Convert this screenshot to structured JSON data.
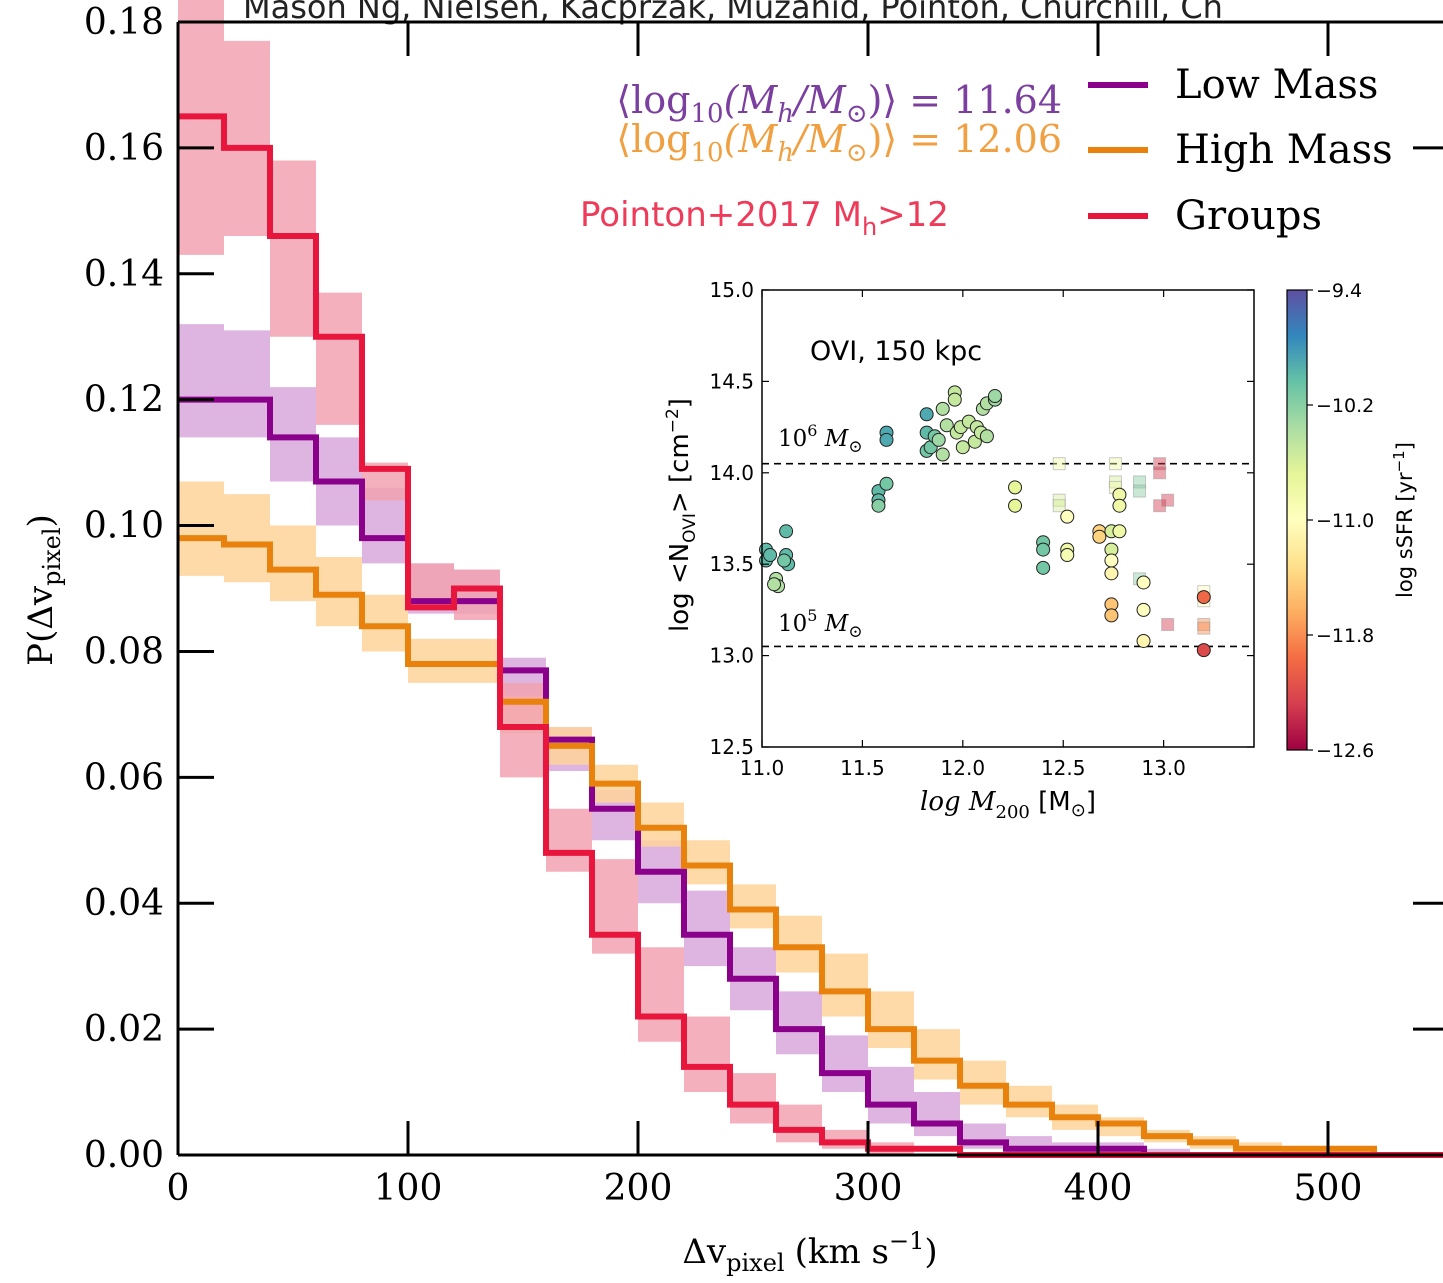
{
  "header_text": "Mason Ng, Nielsen, Kacprzak, Muzahid, Pointon, Churchill, Ch",
  "chart_data": [
    {
      "type": "line",
      "title": "",
      "xlabel": "Δv",
      "xlabel_sub": "pixel",
      "xlabel_unit": "(km s",
      "xlabel_unit_exp": "−1",
      "xlabel_unit_end": ")",
      "ylabel": "P(Δv",
      "ylabel_sub": "pixel",
      "ylabel_end": ")",
      "xlim": [
        0,
        550
      ],
      "ylim": [
        0,
        0.18
      ],
      "xticks": [
        "0",
        "100",
        "200",
        "300",
        "400",
        "500"
      ],
      "yticks": [
        "0.00",
        "0.02",
        "0.04",
        "0.06",
        "0.08",
        "0.10",
        "0.12",
        "0.14",
        "0.16",
        "0.18"
      ],
      "bin_edges": [
        0,
        20,
        40,
        60,
        80,
        100,
        120,
        140,
        160,
        180,
        200,
        220,
        240,
        260,
        280,
        300,
        320,
        340,
        360,
        380,
        400,
        420,
        440,
        460,
        480,
        500,
        520,
        540,
        560
      ],
      "series": [
        {
          "name": "Low Mass",
          "color": "#8b008b",
          "band_color": "#d8a8dc",
          "values": [
            0.12,
            0.12,
            0.114,
            0.107,
            0.098,
            0.088,
            0.088,
            0.077,
            0.066,
            0.055,
            0.045,
            0.035,
            0.028,
            0.02,
            0.013,
            0.008,
            0.005,
            0.002,
            0.001,
            0.001,
            0.001,
            0,
            0,
            0,
            0,
            0,
            0,
            0
          ],
          "lower": [
            0.114,
            0.114,
            0.107,
            0.1,
            0.094,
            0.086,
            0.086,
            0.073,
            0.061,
            0.05,
            0.04,
            0.03,
            0.023,
            0.016,
            0.01,
            0.005,
            0.003,
            0.001,
            0,
            0,
            0,
            0,
            0,
            0,
            0,
            0,
            0,
            0
          ],
          "upper": [
            0.132,
            0.131,
            0.122,
            0.114,
            0.106,
            0.094,
            0.093,
            0.079,
            0.068,
            0.058,
            0.05,
            0.042,
            0.033,
            0.026,
            0.019,
            0.014,
            0.01,
            0.005,
            0.003,
            0.002,
            0.002,
            0.001,
            0,
            0,
            0,
            0,
            0,
            0
          ]
        },
        {
          "name": "High Mass",
          "color": "#e8820c",
          "band_color": "#ffd39a",
          "values": [
            0.098,
            0.097,
            0.093,
            0.089,
            0.084,
            0.078,
            0.078,
            0.072,
            0.065,
            0.059,
            0.052,
            0.046,
            0.039,
            0.033,
            0.026,
            0.02,
            0.015,
            0.011,
            0.008,
            0.006,
            0.005,
            0.003,
            0.002,
            0.001,
            0.001,
            0.001,
            0,
            0
          ],
          "lower": [
            0.092,
            0.091,
            0.088,
            0.084,
            0.08,
            0.075,
            0.075,
            0.067,
            0.062,
            0.056,
            0.049,
            0.043,
            0.036,
            0.029,
            0.022,
            0.017,
            0.012,
            0.008,
            0.006,
            0.004,
            0.003,
            0.002,
            0.001,
            0.001,
            0,
            0,
            0,
            0
          ],
          "upper": [
            0.107,
            0.105,
            0.1,
            0.095,
            0.089,
            0.082,
            0.082,
            0.073,
            0.068,
            0.062,
            0.056,
            0.05,
            0.043,
            0.038,
            0.032,
            0.026,
            0.02,
            0.015,
            0.011,
            0.008,
            0.006,
            0.004,
            0.003,
            0.002,
            0.001,
            0.001,
            0,
            0
          ]
        },
        {
          "name": "Groups",
          "color": "#e8163c",
          "band_color": "#f2a2b0",
          "values": [
            0.165,
            0.16,
            0.146,
            0.13,
            0.109,
            0.087,
            0.09,
            0.068,
            0.048,
            0.035,
            0.022,
            0.014,
            0.008,
            0.004,
            0.002,
            0.001,
            0.001,
            0,
            0,
            0,
            0,
            0,
            0,
            0,
            0,
            0,
            0,
            0
          ],
          "lower": [
            0.143,
            0.146,
            0.13,
            0.116,
            0.104,
            0.087,
            0.085,
            0.06,
            0.045,
            0.032,
            0.018,
            0.01,
            0.005,
            0.002,
            0.001,
            0,
            0,
            0,
            0,
            0,
            0,
            0,
            0,
            0,
            0,
            0,
            0,
            0
          ],
          "upper": [
            0.184,
            0.177,
            0.158,
            0.137,
            0.11,
            0.094,
            0.093,
            0.075,
            0.055,
            0.047,
            0.033,
            0.022,
            0.013,
            0.008,
            0.004,
            0.002,
            0,
            0,
            0,
            0,
            0,
            0,
            0,
            0,
            0,
            0,
            0,
            0
          ]
        }
      ],
      "legend": {
        "placement": "top-right",
        "entries": [
          "Low Mass",
          "High Mass",
          "Groups"
        ]
      },
      "annotations": {
        "low_mass": {
          "prefix": "⟨log",
          "sub": "10",
          "mid": "(M",
          "msub": "h",
          "sep": "/M",
          "sun": "⊙",
          "suffix": ")⟩ = 11.64",
          "color": "#7b3fa0"
        },
        "high_mass": {
          "prefix": "⟨log",
          "sub": "10",
          "mid": "(M",
          "msub": "h",
          "sep": "/M",
          "sun": "⊙",
          "suffix": ")⟩ = 12.06",
          "color": "#f0a040"
        },
        "pointon": {
          "text": "Pointon+2017 M",
          "sub": "h",
          "suffix": ">12",
          "color": "#ee3b5a"
        }
      }
    },
    {
      "type": "scatter",
      "title": "",
      "inset_label": "OVI, 150 kpc",
      "xlabel": "log M",
      "xlabel_sub": "200",
      "xlabel_unit": " [M",
      "xlabel_unit_sun": "⊙",
      "xlabel_unit_end": "]",
      "ylabel": "log <N",
      "ylabel_sub": "OVI",
      "ylabel_mid": "> [cm",
      "ylabel_exp": "−2",
      "ylabel_end": "]",
      "xlim": [
        11.0,
        13.45
      ],
      "ylim": [
        12.5,
        15.0
      ],
      "xticks": [
        "11.0",
        "11.5",
        "12.0",
        "12.5",
        "13.0"
      ],
      "yticks": [
        "12.5",
        "13.0",
        "13.5",
        "14.0",
        "14.5",
        "15.0"
      ],
      "reference_lines": [
        {
          "y": 14.05,
          "label": "10",
          "exp": "6",
          "unit": " M",
          "sun": "⊙"
        },
        {
          "y": 13.05,
          "label": "10",
          "exp": "5",
          "unit": " M",
          "sun": "⊙"
        }
      ],
      "colorbar": {
        "label": "log sSFR [yr",
        "label_exp": "−1",
        "label_end": "]",
        "range": [
          -12.6,
          -9.4
        ],
        "ticks": [
          "−9.4",
          "−10.2",
          "−11.0",
          "−11.8",
          "−12.6"
        ],
        "colors": [
          "#5e4fa2",
          "#3288bd",
          "#66c2a5",
          "#abdda4",
          "#e6f598",
          "#ffffbf",
          "#fee08b",
          "#fdae61",
          "#f46d43",
          "#d53e4f",
          "#9e0142"
        ]
      },
      "circles": [
        [
          11.02,
          13.58,
          -10.0
        ],
        [
          11.02,
          13.52,
          -10.0
        ],
        [
          11.04,
          13.55,
          -10.0
        ],
        [
          11.07,
          13.42,
          -10.4
        ],
        [
          11.08,
          13.38,
          -10.4
        ],
        [
          11.06,
          13.39,
          -10.4
        ],
        [
          11.12,
          13.68,
          -10.0
        ],
        [
          11.12,
          13.55,
          -10.0
        ],
        [
          11.13,
          13.5,
          -10.0
        ],
        [
          11.11,
          13.52,
          -10.1
        ],
        [
          11.58,
          13.9,
          -10.0
        ],
        [
          11.58,
          13.85,
          -10.0
        ],
        [
          11.58,
          13.82,
          -10.2
        ],
        [
          11.62,
          13.94,
          -10.1
        ],
        [
          11.62,
          14.22,
          -9.9
        ],
        [
          11.62,
          14.18,
          -9.9
        ],
        [
          11.82,
          14.32,
          -9.9
        ],
        [
          11.82,
          14.22,
          -10.0
        ],
        [
          11.82,
          14.12,
          -10.1
        ],
        [
          11.84,
          14.14,
          -10.1
        ],
        [
          11.86,
          14.2,
          -10.1
        ],
        [
          11.88,
          14.18,
          -10.3
        ],
        [
          11.9,
          14.35,
          -10.4
        ],
        [
          11.9,
          14.1,
          -10.4
        ],
        [
          11.92,
          14.26,
          -10.4
        ],
        [
          11.96,
          14.44,
          -10.5
        ],
        [
          11.96,
          14.4,
          -10.5
        ],
        [
          11.97,
          14.22,
          -10.5
        ],
        [
          11.99,
          14.25,
          -10.5
        ],
        [
          12.0,
          14.14,
          -10.5
        ],
        [
          12.03,
          14.28,
          -10.5
        ],
        [
          12.06,
          14.17,
          -10.5
        ],
        [
          12.07,
          14.25,
          -10.5
        ],
        [
          12.09,
          14.22,
          -10.5
        ],
        [
          12.1,
          14.35,
          -10.4
        ],
        [
          12.12,
          14.2,
          -10.4
        ],
        [
          12.12,
          14.38,
          -10.4
        ],
        [
          12.16,
          14.4,
          -10.3
        ],
        [
          12.16,
          14.42,
          -10.3
        ],
        [
          12.26,
          13.92,
          -10.7
        ],
        [
          12.26,
          13.82,
          -10.7
        ],
        [
          12.4,
          13.62,
          -10.1
        ],
        [
          12.4,
          13.58,
          -10.1
        ],
        [
          12.4,
          13.48,
          -10.1
        ],
        [
          12.52,
          13.76,
          -11.0
        ],
        [
          12.52,
          13.58,
          -10.8
        ],
        [
          12.52,
          13.55,
          -10.9
        ],
        [
          12.68,
          13.68,
          -11.4
        ],
        [
          12.68,
          13.65,
          -11.4
        ],
        [
          12.74,
          13.68,
          -10.6
        ],
        [
          12.74,
          13.58,
          -10.6
        ],
        [
          12.74,
          13.52,
          -11.0
        ],
        [
          12.74,
          13.45,
          -11.1
        ],
        [
          12.74,
          13.28,
          -11.5
        ],
        [
          12.74,
          13.22,
          -11.5
        ],
        [
          12.78,
          13.88,
          -10.8
        ],
        [
          12.78,
          13.82,
          -10.8
        ],
        [
          12.78,
          13.68,
          -10.8
        ],
        [
          12.9,
          13.4,
          -11.0
        ],
        [
          12.9,
          13.25,
          -11.0
        ],
        [
          12.9,
          13.08,
          -11.1
        ],
        [
          13.2,
          13.32,
          -12.0
        ],
        [
          13.2,
          13.03,
          -12.2
        ]
      ],
      "squares": [
        [
          12.48,
          14.05,
          -10.8
        ],
        [
          12.48,
          13.85,
          -10.6
        ],
        [
          12.48,
          13.82,
          -10.6
        ],
        [
          12.76,
          14.05,
          -10.8
        ],
        [
          12.76,
          13.95,
          -10.6
        ],
        [
          12.76,
          13.92,
          -10.8
        ],
        [
          12.88,
          13.95,
          -10.2
        ],
        [
          12.88,
          13.9,
          -10.2
        ],
        [
          12.88,
          13.42,
          -10.2
        ],
        [
          12.98,
          14.05,
          -12.3
        ],
        [
          12.98,
          14.0,
          -12.3
        ],
        [
          12.98,
          13.82,
          -12.3
        ],
        [
          13.02,
          13.85,
          -12.3
        ],
        [
          13.02,
          13.17,
          -12.3
        ],
        [
          13.2,
          13.35,
          -11.0
        ],
        [
          13.2,
          13.3,
          -11.0
        ],
        [
          13.2,
          13.17,
          -11.8
        ],
        [
          13.2,
          13.15,
          -11.8
        ]
      ]
    }
  ]
}
